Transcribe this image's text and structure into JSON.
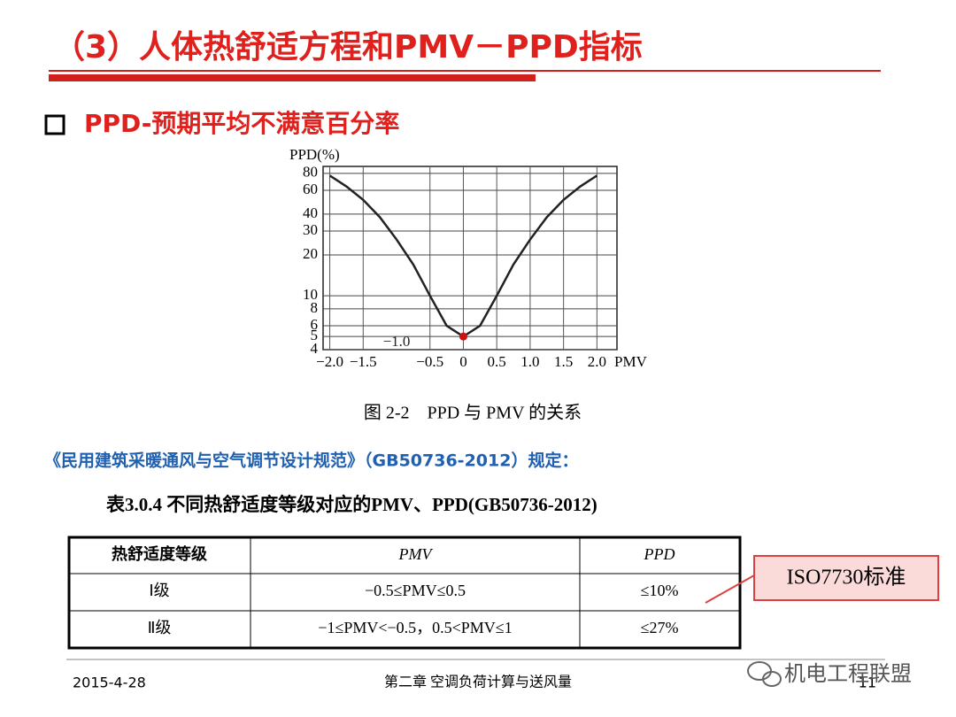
{
  "header": {
    "title": "（3）人体热舒适方程和PMV－PPD指标"
  },
  "section": {
    "bullet_title": "PPD-预期平均不满意百分率"
  },
  "chart_data": {
    "type": "line",
    "ylabel": "PPD(%)",
    "xlabel": "PMV",
    "caption": "图 2-2　PPD 与 PMV 的关系",
    "x": [
      -2,
      -1.75,
      -1.5,
      -1.25,
      -1,
      -0.75,
      -0.5,
      -0.25,
      0,
      0.25,
      0.5,
      0.75,
      1,
      1.25,
      1.5,
      1.75,
      2
    ],
    "series": [
      {
        "color": "#222222",
        "values": [
          77,
          64,
          51,
          38,
          26,
          17,
          10,
          6,
          5,
          6,
          10,
          17,
          26,
          38,
          51,
          64,
          77
        ]
      }
    ],
    "highlight": {
      "x": 0,
      "value": 5,
      "color": "#cc1111"
    },
    "annotations": [
      {
        "text": "−1.0",
        "x": -1,
        "y": 4.5
      }
    ],
    "xlim": [
      -2.1,
      2.3
    ],
    "ylim": [
      4,
      90
    ],
    "log_y": true,
    "grid": true,
    "xticks": [
      {
        "value": -2,
        "label": "−2.0"
      },
      {
        "value": -1.5,
        "label": "−1.5"
      },
      {
        "value": -0.5,
        "label": "−0.5"
      },
      0,
      0.5,
      {
        "value": 1,
        "label": "1.0"
      },
      1.5,
      {
        "value": 2,
        "label": "2.0"
      }
    ],
    "yticks": [
      4,
      5,
      6,
      8,
      10,
      20,
      30,
      40,
      60,
      80
    ]
  },
  "reference": {
    "text": "《民用建筑采暖通风与空气调节设计规范》（GB50736-2012）规定："
  },
  "table": {
    "caption": "表3.0.4 不同热舒适度等级对应的PMV、PPD(GB50736-2012)",
    "header": [
      "热舒适度等级",
      "PMV",
      "PPD"
    ],
    "rows": [
      [
        "Ⅰ级",
        "−0.5≤PMV≤0.5",
        "≤10%"
      ],
      [
        "Ⅱ级",
        "−1≤PMV<−0.5，0.5<PMV≤1",
        "≤27%"
      ]
    ]
  },
  "callout": {
    "text": "ISO7730标准"
  },
  "footer": {
    "date": "2015-4-28",
    "chapter": "第二章 空调负荷计算与送风量",
    "page": "11",
    "watermark": "机电工程联盟"
  }
}
